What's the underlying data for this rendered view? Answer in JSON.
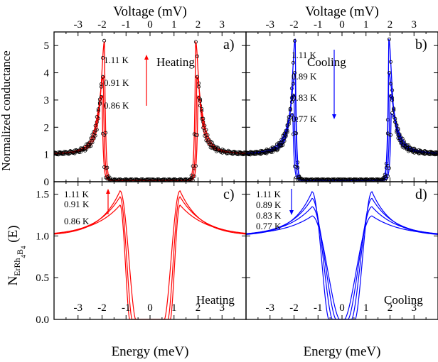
{
  "figure": {
    "top_axis_label": "Voltage (mV)",
    "bottom_axis_label": "Energy (meV)",
    "ylabel_top": "Normalized conductance",
    "ylabel_bottom_main": "N",
    "ylabel_bottom_sub": "ErRh",
    "ylabel_bottom_sub2": "4",
    "ylabel_bottom_b": "B",
    "ylabel_bottom_sub3": "4",
    "ylabel_bottom_tail": " (E)"
  },
  "colors": {
    "heating": "#ff0000",
    "cooling": "#0000ff",
    "markers": "#000000"
  },
  "chart_data": [
    {
      "panel": "a)",
      "type": "scatter",
      "mode": "Heating",
      "x_unit": "Voltage (mV)",
      "xlim": [
        -4.0,
        4.0
      ],
      "ylim": [
        0,
        5.5
      ],
      "xticks": [
        -3,
        -2,
        -1,
        0,
        1,
        2,
        3
      ],
      "yticks": [
        0,
        1,
        2,
        3,
        4,
        5
      ],
      "arrow_direction": "up",
      "series": [
        {
          "name": "1.11 K",
          "gap": 1.9,
          "peak": 5.15,
          "width": 0.38
        },
        {
          "name": "0.91 K",
          "gap": 1.95,
          "peak": 3.85,
          "width": 0.5
        },
        {
          "name": "0.86 K",
          "gap": 2.0,
          "peak": 3.15,
          "width": 0.62
        }
      ]
    },
    {
      "panel": "b)",
      "type": "scatter",
      "mode": "Cooling",
      "x_unit": "Voltage (mV)",
      "xlim": [
        -4.0,
        4.0
      ],
      "ylim": [
        0,
        5.5
      ],
      "xticks": [
        -3,
        -2,
        -1,
        0,
        1,
        2,
        3
      ],
      "yticks": [
        0,
        1,
        2,
        3,
        4,
        5
      ],
      "arrow_direction": "down",
      "series": [
        {
          "name": "1.11 K",
          "gap": 1.95,
          "peak": 5.25,
          "width": 0.36
        },
        {
          "name": "0.89 K",
          "gap": 1.95,
          "peak": 4.0,
          "width": 0.48
        },
        {
          "name": "0.83 K",
          "gap": 2.0,
          "peak": 3.2,
          "width": 0.6
        },
        {
          "name": "0.77 K",
          "gap": 2.05,
          "peak": 2.5,
          "width": 0.8
        }
      ]
    },
    {
      "panel": "c)",
      "type": "line",
      "mode": "Heating",
      "x_unit": "Energy (meV)",
      "xlim": [
        -4.0,
        4.0
      ],
      "ylim": [
        0,
        1.65
      ],
      "xticks": [
        -3,
        -2,
        -1,
        0,
        1,
        2,
        3
      ],
      "yticks": [
        0.0,
        0.5,
        1.0,
        1.5
      ],
      "arrow_direction": "up",
      "series": [
        {
          "name": "1.11 K",
          "gap": 0.6,
          "peak": 1.54,
          "width": 0.95
        },
        {
          "name": "0.91 K",
          "gap": 0.75,
          "peak": 1.47,
          "width": 1.1
        },
        {
          "name": "0.86 K",
          "gap": 0.85,
          "peak": 1.37,
          "width": 1.25
        }
      ]
    },
    {
      "panel": "d)",
      "type": "line",
      "mode": "Cooling",
      "x_unit": "Energy (meV)",
      "xlim": [
        -4.0,
        4.0
      ],
      "ylim": [
        0,
        1.65
      ],
      "xticks": [
        -3,
        -2,
        -1,
        0,
        1,
        2,
        3
      ],
      "yticks": [
        0.0,
        0.5,
        1.0,
        1.5
      ],
      "arrow_direction": "down",
      "series": [
        {
          "name": "1.11 K",
          "gap": 0.55,
          "peak": 1.53,
          "width": 0.9
        },
        {
          "name": "0.89 K",
          "gap": 0.4,
          "peak": 1.45,
          "width": 1.05
        },
        {
          "name": "0.83 K",
          "gap": 0.25,
          "peak": 1.35,
          "width": 1.2
        },
        {
          "name": "0.77 K",
          "gap": 0.1,
          "peak": 1.24,
          "width": 1.35
        }
      ]
    }
  ]
}
